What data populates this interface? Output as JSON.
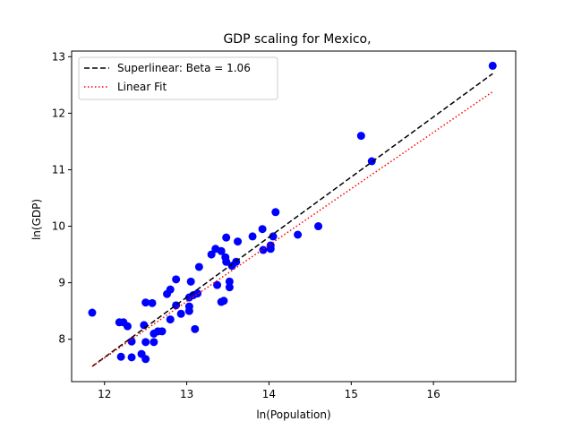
{
  "chart_data": {
    "type": "scatter",
    "title": "GDP scaling for Mexico,",
    "xlabel": "ln(Population)",
    "ylabel": "ln(GDP)",
    "xlim": [
      11.6,
      17.0
    ],
    "ylim": [
      7.25,
      13.1
    ],
    "xticks": [
      12,
      13,
      14,
      15,
      16
    ],
    "yticks": [
      8,
      9,
      10,
      11,
      12,
      13
    ],
    "grid": false,
    "legend_position": "upper-left",
    "points_color": "#0000ff",
    "points": [
      [
        11.85,
        8.47
      ],
      [
        12.18,
        8.3
      ],
      [
        12.23,
        8.3
      ],
      [
        12.28,
        8.23
      ],
      [
        12.2,
        7.69
      ],
      [
        12.33,
        7.68
      ],
      [
        12.33,
        7.96
      ],
      [
        12.45,
        7.74
      ],
      [
        12.5,
        7.65
      ],
      [
        12.5,
        7.95
      ],
      [
        12.48,
        8.25
      ],
      [
        12.5,
        8.65
      ],
      [
        12.58,
        8.64
      ],
      [
        12.6,
        8.1
      ],
      [
        12.6,
        7.95
      ],
      [
        12.65,
        8.14
      ],
      [
        12.7,
        8.14
      ],
      [
        12.76,
        8.8
      ],
      [
        12.8,
        8.35
      ],
      [
        12.8,
        8.88
      ],
      [
        12.87,
        9.06
      ],
      [
        12.87,
        8.6
      ],
      [
        12.93,
        8.45
      ],
      [
        13.03,
        8.5
      ],
      [
        13.03,
        8.58
      ],
      [
        13.03,
        8.74
      ],
      [
        13.05,
        9.02
      ],
      [
        13.08,
        8.78
      ],
      [
        13.1,
        8.18
      ],
      [
        13.13,
        8.81
      ],
      [
        13.15,
        9.28
      ],
      [
        13.3,
        9.5
      ],
      [
        13.35,
        9.6
      ],
      [
        13.37,
        8.96
      ],
      [
        13.42,
        9.56
      ],
      [
        13.42,
        8.66
      ],
      [
        13.45,
        8.68
      ],
      [
        13.47,
        9.45
      ],
      [
        13.48,
        9.8
      ],
      [
        13.48,
        9.37
      ],
      [
        13.52,
        9.02
      ],
      [
        13.52,
        8.92
      ],
      [
        13.55,
        9.3
      ],
      [
        13.6,
        9.37
      ],
      [
        13.62,
        9.73
      ],
      [
        13.8,
        9.82
      ],
      [
        13.92,
        9.95
      ],
      [
        13.93,
        9.58
      ],
      [
        14.02,
        9.6
      ],
      [
        14.02,
        9.66
      ],
      [
        14.05,
        9.82
      ],
      [
        14.08,
        10.25
      ],
      [
        14.35,
        9.85
      ],
      [
        14.6,
        10.0
      ],
      [
        15.12,
        11.6
      ],
      [
        15.25,
        11.15
      ],
      [
        16.72,
        12.84
      ]
    ],
    "series": [
      {
        "name": "Superlinear: Beta = 1.06",
        "style": "dashed",
        "color": "#000000",
        "x": [
          11.85,
          16.72
        ],
        "y": [
          7.52,
          12.7
        ]
      },
      {
        "name": "Linear Fit",
        "style": "dotted",
        "color": "#ff0000",
        "x": [
          11.85,
          16.72
        ],
        "y": [
          7.52,
          12.38
        ]
      }
    ]
  }
}
